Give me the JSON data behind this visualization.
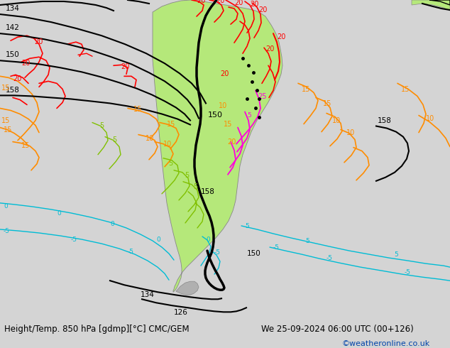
{
  "title_left": "Height/Temp. 850 hPa [gdmp][°C] CMC/GEM",
  "title_right": "We 25-09-2024 06:00 UTC (00+126)",
  "watermark": "©weatheronline.co.uk",
  "bg_color": "#d4d4d4",
  "sea_color": "#d4d4d4",
  "land_green": "#b5e87a",
  "land_gray": "#c8c8c8",
  "border_gray": "#888888",
  "black": "#000000",
  "red": "#ff0000",
  "orange": "#ff8c00",
  "yellow_green": "#9acd32",
  "magenta": "#ff00cc",
  "cyan": "#00bcd4",
  "dark_cyan": "#008b8b",
  "figsize": [
    6.34,
    4.9
  ],
  "dpi": 100
}
